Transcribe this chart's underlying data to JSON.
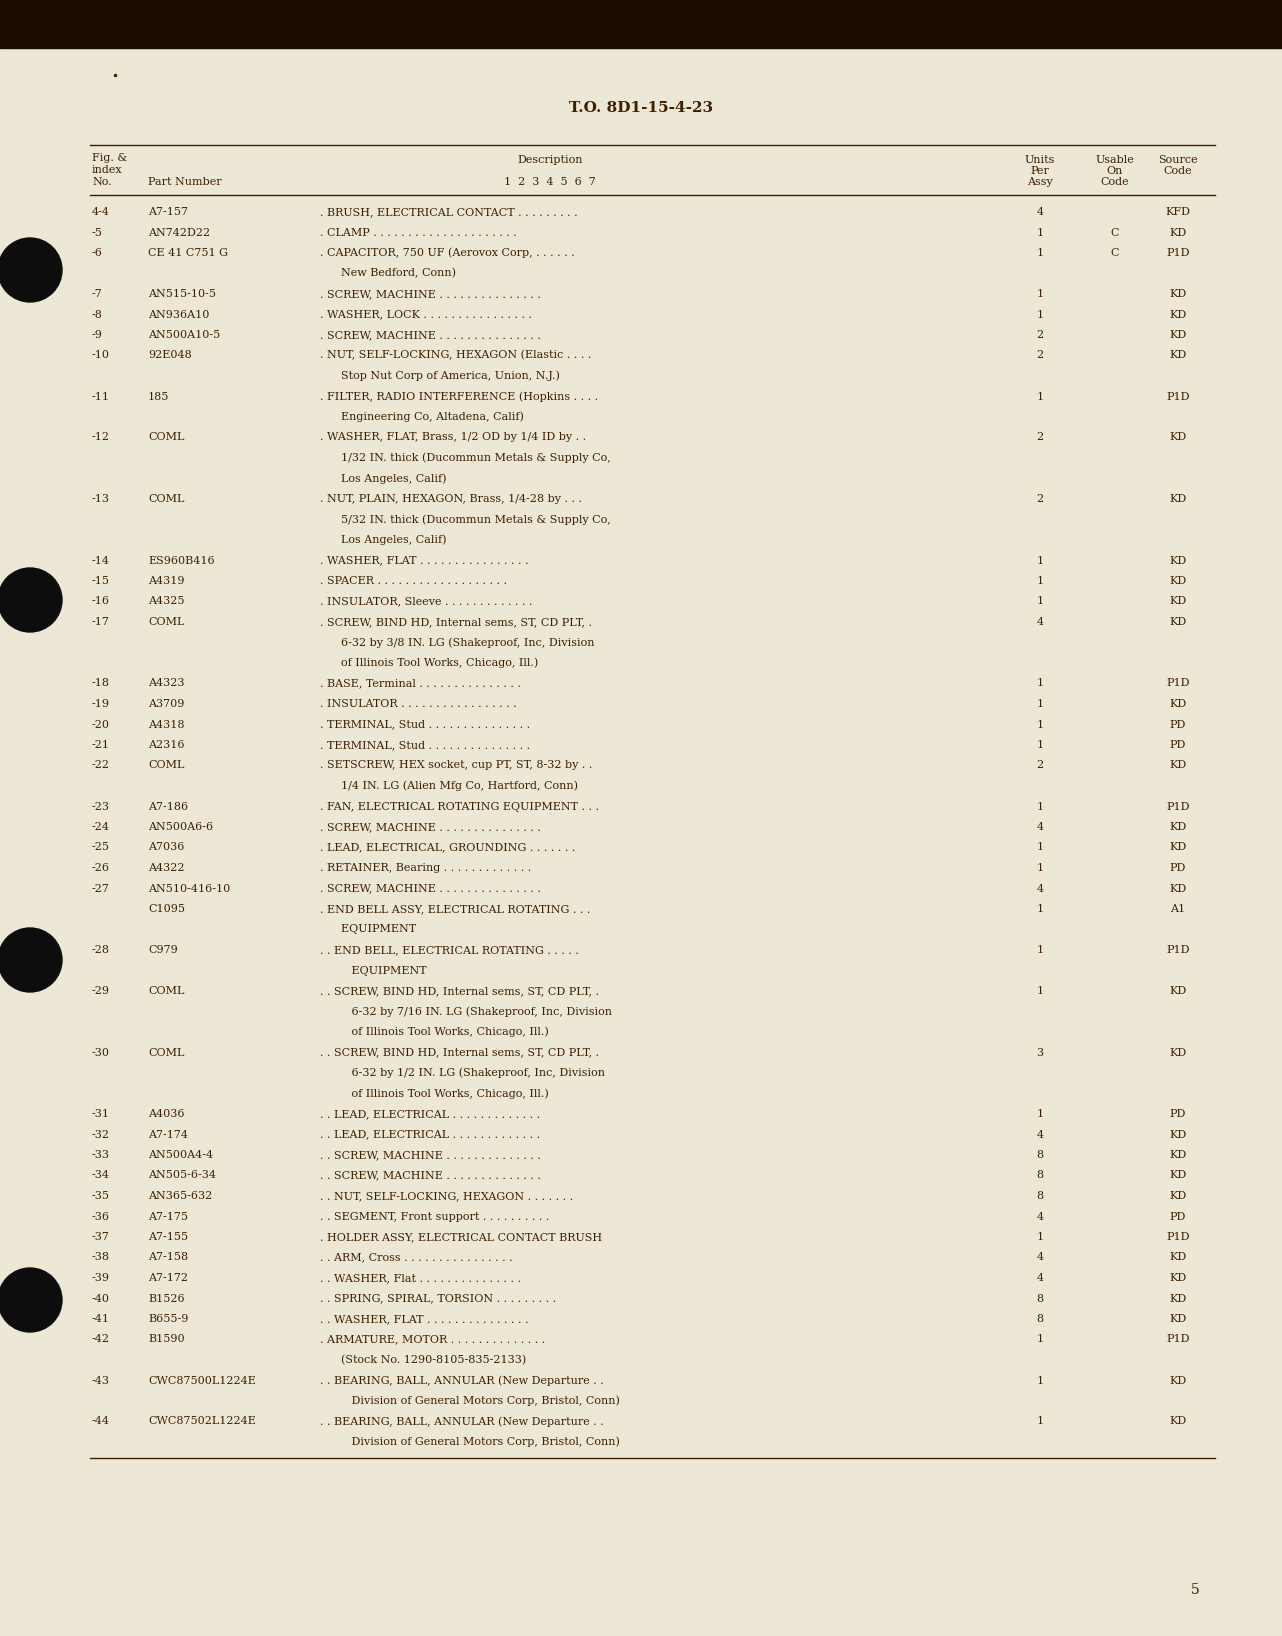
{
  "bg_color": "#ede8d5",
  "dark_bg": "#1a0d00",
  "text_color": "#3d2000",
  "title": "T.O. 8D1-15-4-23",
  "page_number": "5",
  "rows": [
    {
      "fig": "4-4",
      "part": "A7-157",
      "indent": 1,
      "desc": ". BRUSH, ELECTRICAL CONTACT . . . . . . . . .",
      "units": "4",
      "usable": "",
      "source": "KFD"
    },
    {
      "fig": "-5",
      "part": "AN742D22",
      "indent": 1,
      "desc": ". CLAMP . . . . . . . . . . . . . . . . . . . . .",
      "units": "1",
      "usable": "C",
      "source": "KD"
    },
    {
      "fig": "-6",
      "part": "CE 41 C751 G",
      "indent": 1,
      "desc": ". CAPACITOR, 750 UF (Aerovox Corp, . . . . . .",
      "units": "1",
      "usable": "C",
      "source": "P1D"
    },
    {
      "fig": "",
      "part": "",
      "indent": 0,
      "desc": "      New Bedford, Conn)",
      "units": "",
      "usable": "",
      "source": ""
    },
    {
      "fig": "-7",
      "part": "AN515-10-5",
      "indent": 1,
      "desc": ". SCREW, MACHINE . . . . . . . . . . . . . . .",
      "units": "1",
      "usable": "",
      "source": "KD"
    },
    {
      "fig": "-8",
      "part": "AN936A10",
      "indent": 1,
      "desc": ". WASHER, LOCK . . . . . . . . . . . . . . . .",
      "units": "1",
      "usable": "",
      "source": "KD"
    },
    {
      "fig": "-9",
      "part": "AN500A10-5",
      "indent": 1,
      "desc": ". SCREW, MACHINE . . . . . . . . . . . . . . .",
      "units": "2",
      "usable": "",
      "source": "KD"
    },
    {
      "fig": "-10",
      "part": "92E048",
      "indent": 1,
      "desc": ". NUT, SELF-LOCKING, HEXAGON (Elastic . . . .",
      "units": "2",
      "usable": "",
      "source": "KD"
    },
    {
      "fig": "",
      "part": "",
      "indent": 0,
      "desc": "      Stop Nut Corp of America, Union, N.J.)",
      "units": "",
      "usable": "",
      "source": ""
    },
    {
      "fig": "-11",
      "part": "185",
      "indent": 1,
      "desc": ". FILTER, RADIO INTERFERENCE (Hopkins . . . .",
      "units": "1",
      "usable": "",
      "source": "P1D"
    },
    {
      "fig": "",
      "part": "",
      "indent": 0,
      "desc": "      Engineering Co, Altadena, Calif)",
      "units": "",
      "usable": "",
      "source": ""
    },
    {
      "fig": "-12",
      "part": "COML",
      "indent": 1,
      "desc": ". WASHER, FLAT, Brass, 1/2 OD by 1/4 ID by . .",
      "units": "2",
      "usable": "",
      "source": "KD"
    },
    {
      "fig": "",
      "part": "",
      "indent": 0,
      "desc": "      1/32 IN. thick (Ducommun Metals & Supply Co,",
      "units": "",
      "usable": "",
      "source": ""
    },
    {
      "fig": "",
      "part": "",
      "indent": 0,
      "desc": "      Los Angeles, Calif)",
      "units": "",
      "usable": "",
      "source": ""
    },
    {
      "fig": "-13",
      "part": "COML",
      "indent": 1,
      "desc": ". NUT, PLAIN, HEXAGON, Brass, 1/4-28 by . . .",
      "units": "2",
      "usable": "",
      "source": "KD"
    },
    {
      "fig": "",
      "part": "",
      "indent": 0,
      "desc": "      5/32 IN. thick (Ducommun Metals & Supply Co,",
      "units": "",
      "usable": "",
      "source": ""
    },
    {
      "fig": "",
      "part": "",
      "indent": 0,
      "desc": "      Los Angeles, Calif)",
      "units": "",
      "usable": "",
      "source": ""
    },
    {
      "fig": "-14",
      "part": "ES960B416",
      "indent": 1,
      "desc": ". WASHER, FLAT . . . . . . . . . . . . . . . .",
      "units": "1",
      "usable": "",
      "source": "KD"
    },
    {
      "fig": "-15",
      "part": "A4319",
      "indent": 1,
      "desc": ". SPACER . . . . . . . . . . . . . . . . . . .",
      "units": "1",
      "usable": "",
      "source": "KD"
    },
    {
      "fig": "-16",
      "part": "A4325",
      "indent": 1,
      "desc": ". INSULATOR, Sleeve . . . . . . . . . . . . .",
      "units": "1",
      "usable": "",
      "source": "KD"
    },
    {
      "fig": "-17",
      "part": "COML",
      "indent": 1,
      "desc": ". SCREW, BIND HD, Internal sems, ST, CD PLT, .",
      "units": "4",
      "usable": "",
      "source": "KD"
    },
    {
      "fig": "",
      "part": "",
      "indent": 0,
      "desc": "      6-32 by 3/8 IN. LG (Shakeproof, Inc, Division",
      "units": "",
      "usable": "",
      "source": ""
    },
    {
      "fig": "",
      "part": "",
      "indent": 0,
      "desc": "      of Illinois Tool Works, Chicago, Ill.)",
      "units": "",
      "usable": "",
      "source": ""
    },
    {
      "fig": "-18",
      "part": "A4323",
      "indent": 1,
      "desc": ". BASE, Terminal . . . . . . . . . . . . . . .",
      "units": "1",
      "usable": "",
      "source": "P1D"
    },
    {
      "fig": "-19",
      "part": "A3709",
      "indent": 1,
      "desc": ". INSULATOR . . . . . . . . . . . . . . . . .",
      "units": "1",
      "usable": "",
      "source": "KD"
    },
    {
      "fig": "-20",
      "part": "A4318",
      "indent": 1,
      "desc": ". TERMINAL, Stud . . . . . . . . . . . . . . .",
      "units": "1",
      "usable": "",
      "source": "PD"
    },
    {
      "fig": "-21",
      "part": "A2316",
      "indent": 1,
      "desc": ". TERMINAL, Stud . . . . . . . . . . . . . . .",
      "units": "1",
      "usable": "",
      "source": "PD"
    },
    {
      "fig": "-22",
      "part": "COML",
      "indent": 1,
      "desc": ". SETSCREW, HEX socket, cup PT, ST, 8-32 by . .",
      "units": "2",
      "usable": "",
      "source": "KD"
    },
    {
      "fig": "",
      "part": "",
      "indent": 0,
      "desc": "      1/4 IN. LG (Alien Mfg Co, Hartford, Conn)",
      "units": "",
      "usable": "",
      "source": ""
    },
    {
      "fig": "-23",
      "part": "A7-186",
      "indent": 1,
      "desc": ". FAN, ELECTRICAL ROTATING EQUIPMENT . . .",
      "units": "1",
      "usable": "",
      "source": "P1D"
    },
    {
      "fig": "-24",
      "part": "AN500A6-6",
      "indent": 1,
      "desc": ". SCREW, MACHINE . . . . . . . . . . . . . . .",
      "units": "4",
      "usable": "",
      "source": "KD"
    },
    {
      "fig": "-25",
      "part": "A7036",
      "indent": 1,
      "desc": ". LEAD, ELECTRICAL, GROUNDING . . . . . . .",
      "units": "1",
      "usable": "",
      "source": "KD"
    },
    {
      "fig": "-26",
      "part": "A4322",
      "indent": 1,
      "desc": ". RETAINER, Bearing . . . . . . . . . . . . .",
      "units": "1",
      "usable": "",
      "source": "PD"
    },
    {
      "fig": "-27",
      "part": "AN510-416-10",
      "indent": 1,
      "desc": ". SCREW, MACHINE . . . . . . . . . . . . . . .",
      "units": "4",
      "usable": "",
      "source": "KD"
    },
    {
      "fig": "",
      "part": "C1095",
      "indent": 1,
      "desc": ". END BELL ASSY, ELECTRICAL ROTATING . . .",
      "units": "1",
      "usable": "",
      "source": "A1"
    },
    {
      "fig": "",
      "part": "",
      "indent": 0,
      "desc": "      EQUIPMENT",
      "units": "",
      "usable": "",
      "source": ""
    },
    {
      "fig": "-28",
      "part": "C979",
      "indent": 2,
      "desc": ". . END BELL, ELECTRICAL ROTATING . . . . .",
      "units": "1",
      "usable": "",
      "source": "P1D"
    },
    {
      "fig": "",
      "part": "",
      "indent": 0,
      "desc": "         EQUIPMENT",
      "units": "",
      "usable": "",
      "source": ""
    },
    {
      "fig": "-29",
      "part": "COML",
      "indent": 2,
      "desc": ". . SCREW, BIND HD, Internal sems, ST, CD PLT, .",
      "units": "1",
      "usable": "",
      "source": "KD"
    },
    {
      "fig": "",
      "part": "",
      "indent": 0,
      "desc": "         6-32 by 7/16 IN. LG (Shakeproof, Inc, Division",
      "units": "",
      "usable": "",
      "source": ""
    },
    {
      "fig": "",
      "part": "",
      "indent": 0,
      "desc": "         of Illinois Tool Works, Chicago, Ill.)",
      "units": "",
      "usable": "",
      "source": ""
    },
    {
      "fig": "-30",
      "part": "COML",
      "indent": 2,
      "desc": ". . SCREW, BIND HD, Internal sems, ST, CD PLT, .",
      "units": "3",
      "usable": "",
      "source": "KD"
    },
    {
      "fig": "",
      "part": "",
      "indent": 0,
      "desc": "         6-32 by 1/2 IN. LG (Shakeproof, Inc, Division",
      "units": "",
      "usable": "",
      "source": ""
    },
    {
      "fig": "",
      "part": "",
      "indent": 0,
      "desc": "         of Illinois Tool Works, Chicago, Ill.)",
      "units": "",
      "usable": "",
      "source": ""
    },
    {
      "fig": "-31",
      "part": "A4036",
      "indent": 2,
      "desc": ". . LEAD, ELECTRICAL . . . . . . . . . . . . .",
      "units": "1",
      "usable": "",
      "source": "PD"
    },
    {
      "fig": "-32",
      "part": "A7-174",
      "indent": 2,
      "desc": ". . LEAD, ELECTRICAL . . . . . . . . . . . . .",
      "units": "4",
      "usable": "",
      "source": "KD"
    },
    {
      "fig": "-33",
      "part": "AN500A4-4",
      "indent": 2,
      "desc": ". . SCREW, MACHINE . . . . . . . . . . . . . .",
      "units": "8",
      "usable": "",
      "source": "KD"
    },
    {
      "fig": "-34",
      "part": "AN505-6-34",
      "indent": 2,
      "desc": ". . SCREW, MACHINE . . . . . . . . . . . . . .",
      "units": "8",
      "usable": "",
      "source": "KD"
    },
    {
      "fig": "-35",
      "part": "AN365-632",
      "indent": 2,
      "desc": ". . NUT, SELF-LOCKING, HEXAGON . . . . . . .",
      "units": "8",
      "usable": "",
      "source": "KD"
    },
    {
      "fig": "-36",
      "part": "A7-175",
      "indent": 2,
      "desc": ". . SEGMENT, Front support . . . . . . . . . .",
      "units": "4",
      "usable": "",
      "source": "PD"
    },
    {
      "fig": "-37",
      "part": "A7-155",
      "indent": 1,
      "desc": ". HOLDER ASSY, ELECTRICAL CONTACT BRUSH",
      "units": "1",
      "usable": "",
      "source": "P1D"
    },
    {
      "fig": "-38",
      "part": "A7-158",
      "indent": 2,
      "desc": ". . ARM, Cross . . . . . . . . . . . . . . . .",
      "units": "4",
      "usable": "",
      "source": "KD"
    },
    {
      "fig": "-39",
      "part": "A7-172",
      "indent": 2,
      "desc": ". . WASHER, Flat . . . . . . . . . . . . . . .",
      "units": "4",
      "usable": "",
      "source": "KD"
    },
    {
      "fig": "-40",
      "part": "B1526",
      "indent": 2,
      "desc": ". . SPRING, SPIRAL, TORSION . . . . . . . . .",
      "units": "8",
      "usable": "",
      "source": "KD"
    },
    {
      "fig": "-41",
      "part": "B655-9",
      "indent": 2,
      "desc": ". . WASHER, FLAT . . . . . . . . . . . . . . .",
      "units": "8",
      "usable": "",
      "source": "KD"
    },
    {
      "fig": "-42",
      "part": "B1590",
      "indent": 1,
      "desc": ". ARMATURE, MOTOR . . . . . . . . . . . . . .",
      "units": "1",
      "usable": "",
      "source": "P1D"
    },
    {
      "fig": "",
      "part": "",
      "indent": 0,
      "desc": "      (Stock No. 1290-8105-835-2133)",
      "units": "",
      "usable": "",
      "source": ""
    },
    {
      "fig": "-43",
      "part": "CWC87500L1224E",
      "indent": 2,
      "desc": ". . BEARING, BALL, ANNULAR (New Departure . .",
      "units": "1",
      "usable": "",
      "source": "KD"
    },
    {
      "fig": "",
      "part": "",
      "indent": 0,
      "desc": "         Division of General Motors Corp, Bristol, Conn)",
      "units": "",
      "usable": "",
      "source": ""
    },
    {
      "fig": "-44",
      "part": "CWC87502L1224E",
      "indent": 2,
      "desc": ". . BEARING, BALL, ANNULAR (New Departure . .",
      "units": "1",
      "usable": "",
      "source": "KD"
    },
    {
      "fig": "",
      "part": "",
      "indent": 0,
      "desc": "         Division of General Motors Corp, Bristol, Conn)",
      "units": "",
      "usable": "",
      "source": ""
    }
  ]
}
